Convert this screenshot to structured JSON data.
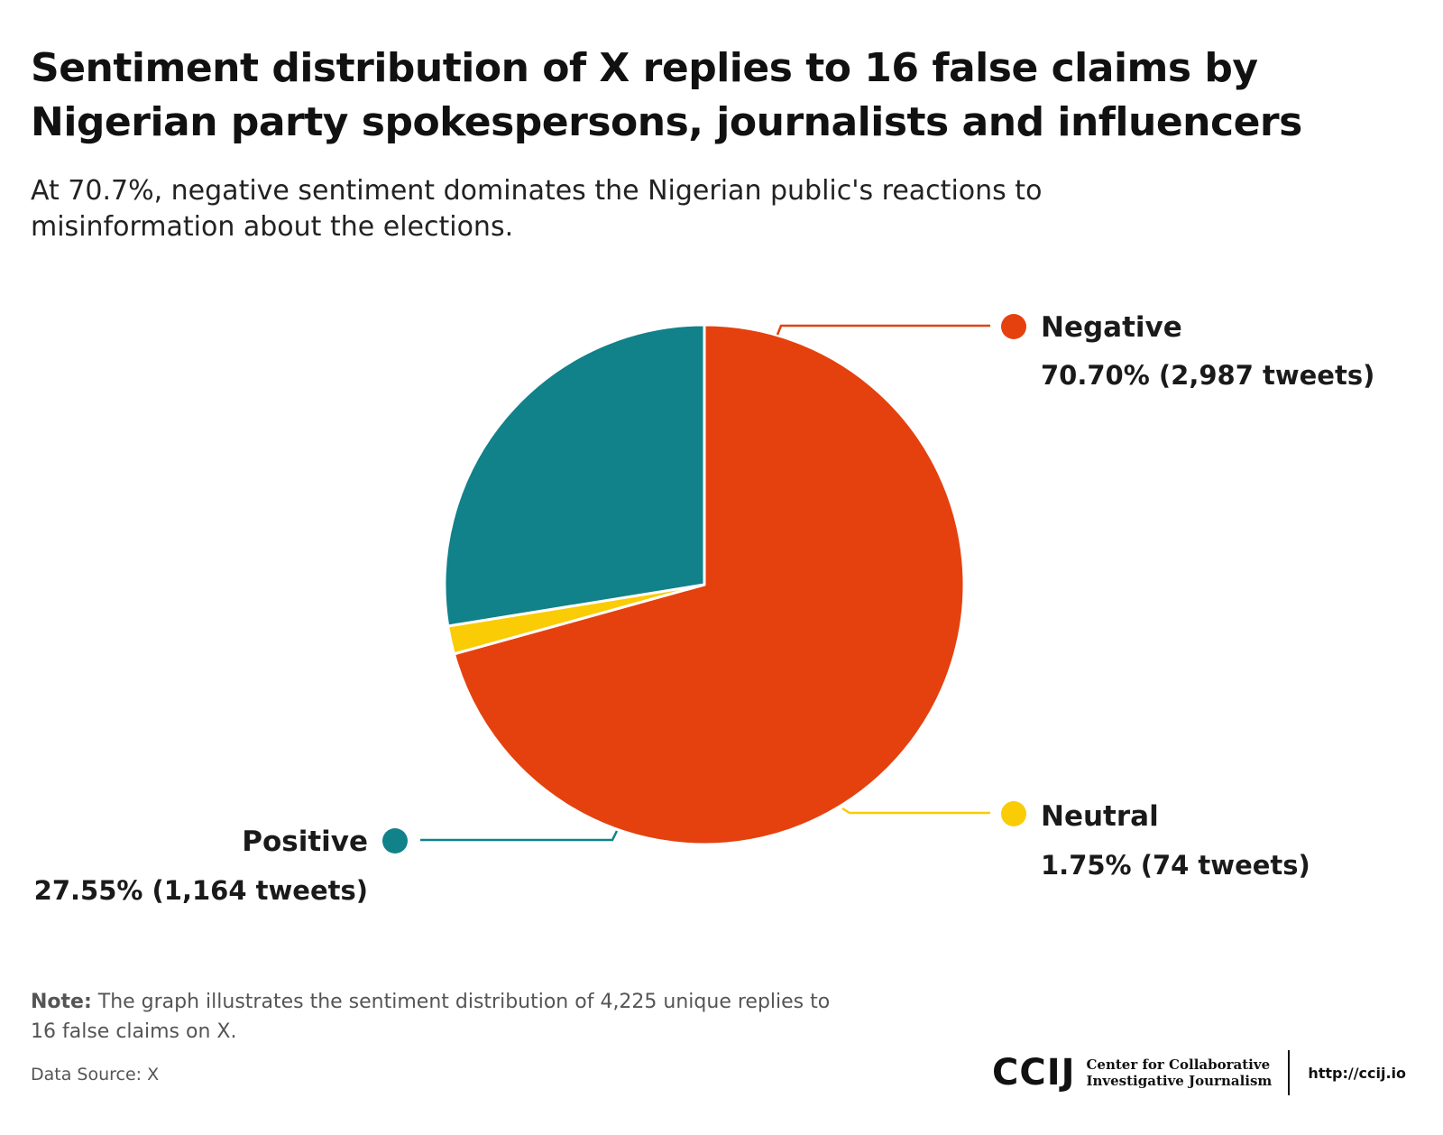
{
  "title": "Sentiment distribution of X replies to 16 false claims by Nigerian party spokespersons, journalists and influencers",
  "subtitle": "At 70.7%, negative sentiment dominates the Nigerian public's reactions to misinformation about the elections.",
  "chart_data": {
    "type": "pie",
    "slices": [
      {
        "name": "Negative",
        "value": 70.7,
        "label": "70.70% (2,987 tweets)",
        "color": "#E5410F"
      },
      {
        "name": "Neutral",
        "value": 1.75,
        "label": "1.75% (74 tweets)",
        "color": "#FACC05"
      },
      {
        "name": "Positive",
        "value": 27.55,
        "label": "27.55% (1,164 tweets)",
        "color": "#11818A"
      }
    ]
  },
  "note": {
    "label": "Note:",
    "text": " The graph illustrates the sentiment distribution of 4,225 unique replies to 16 false claims on X."
  },
  "source": "Data Source: X",
  "branding": {
    "logo": "CCIJ",
    "org_line1": "Center for Collaborative",
    "org_line2": "Investigative Journalism",
    "url": "http://ccij.io"
  }
}
